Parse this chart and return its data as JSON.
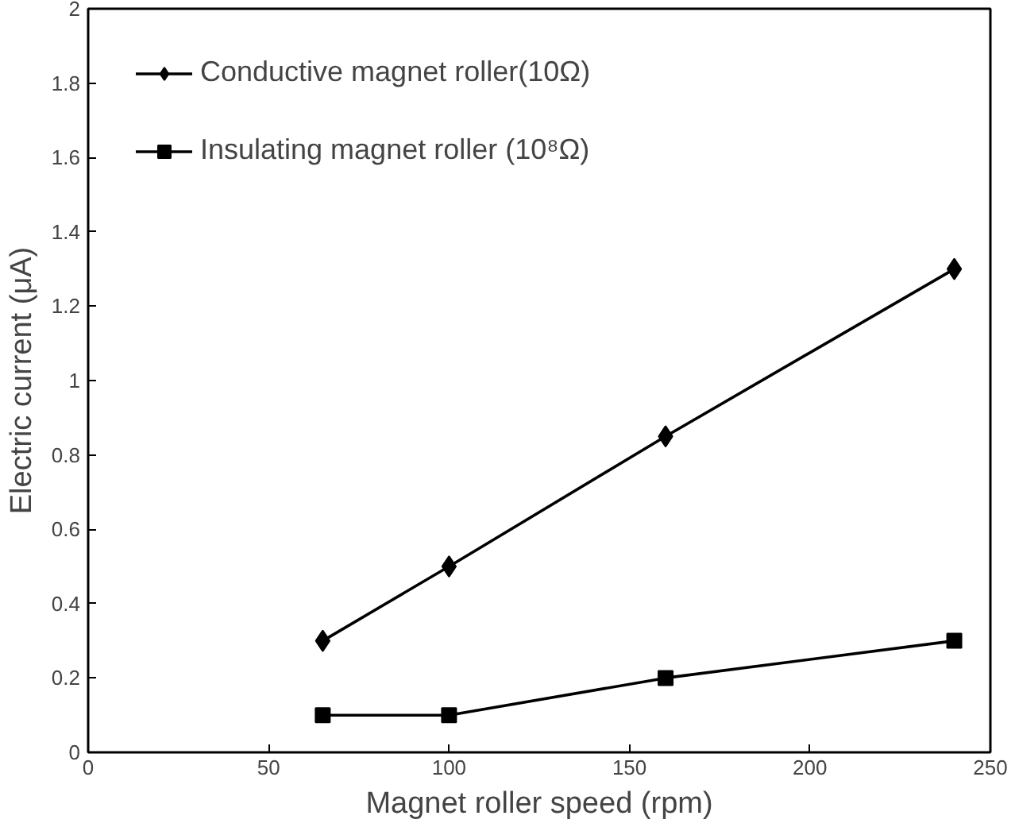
{
  "chart_data": {
    "type": "line",
    "xlabel": "Magnet roller speed (rpm)",
    "ylabel": "Electric current (μA)",
    "x": [
      65,
      100,
      160,
      240
    ],
    "series": [
      {
        "name": "Conductive magnet roller(10Ω)",
        "color": "#000000",
        "marker": "diamond",
        "values": [
          0.3,
          0.5,
          0.85,
          1.3
        ]
      },
      {
        "name": "Insulating magnet roller (10⁸Ω)",
        "color": "#000000",
        "marker": "square",
        "values": [
          0.1,
          0.1,
          0.2,
          0.3
        ]
      }
    ],
    "xlim": [
      0,
      250
    ],
    "xticks": [
      0,
      50,
      100,
      150,
      200,
      250
    ],
    "ylim": [
      0,
      2
    ],
    "yticks": [
      0,
      0.2,
      0.4,
      0.6,
      0.8,
      1,
      1.2,
      1.4,
      1.6,
      1.8,
      2
    ],
    "grid": false,
    "legend": "top left",
    "line_style": "solid"
  }
}
